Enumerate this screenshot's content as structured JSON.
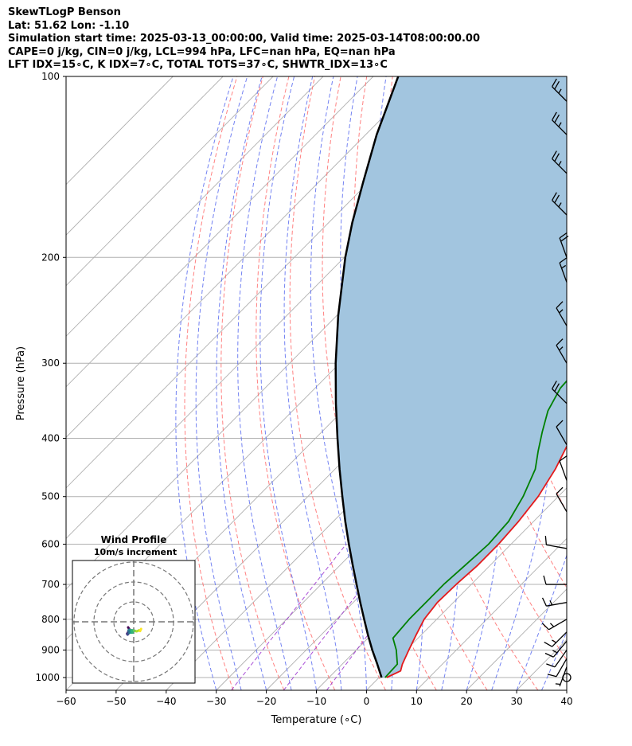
{
  "header": {
    "line1": "SkewTLogP Benson",
    "line2": "Lat: 51.62   Lon: -1.10",
    "line3": "Simulation start time: 2025-03-13_00:00:00, Valid time: 2025-03-14T08:00:00.00",
    "line4": "CAPE=0 j/kg, CIN=0 j/kg, LCL=994 hPa, LFC=nan hPa, EQ=nan hPa",
    "line5": "LFT IDX=15∘C, K IDX=7∘C, TOTAL TOTS=37∘C, SHWTR_IDX=13∘C"
  },
  "colors": {
    "temperature": "#e41a1c",
    "dewpoint": "#008000",
    "parcel": "#000000",
    "cape_fill": "#a2c5df",
    "dry_adiabat": "#ff6b6b",
    "moist_adiabat": "#5a6cf0",
    "isotherm": "#b0b0b0",
    "mixing_ratio": "#9b30d0"
  },
  "chart_data": {
    "type": "line",
    "xlabel": "Temperature (∘C)",
    "ylabel": "Pressure (hPa)",
    "xlim": [
      -60,
      40
    ],
    "ylim": [
      1050,
      100
    ],
    "y_scale": "log",
    "x_ticks": [
      "−60",
      "−50",
      "−40",
      "−30",
      "−20",
      "−10",
      "0",
      "10",
      "20",
      "30",
      "40"
    ],
    "y_ticks": [
      "1000",
      "900",
      "800",
      "700",
      "600",
      "500",
      "400",
      "300",
      "200",
      "100"
    ],
    "grid": true,
    "series": [
      {
        "key": "temperature",
        "points": [
          [
            1000,
            1.5
          ],
          [
            975,
            3.0
          ],
          [
            950,
            2.0
          ],
          [
            900,
            0.5
          ],
          [
            850,
            -1.0
          ],
          [
            800,
            -2.5
          ],
          [
            750,
            -3.2
          ],
          [
            700,
            -3.0
          ],
          [
            650,
            -2.5
          ],
          [
            600,
            -2.5
          ],
          [
            550,
            -3.0
          ],
          [
            500,
            -4.0
          ],
          [
            450,
            -6.0
          ],
          [
            400,
            -9.0
          ],
          [
            350,
            -13.0
          ],
          [
            300,
            -16.5
          ],
          [
            280,
            -16.0
          ],
          [
            250,
            -13.0
          ],
          [
            200,
            -6.0
          ],
          [
            180,
            0.0
          ],
          [
            165,
            2.5
          ],
          [
            140,
            5.0
          ],
          [
            120,
            7.5
          ],
          [
            100,
            9.0
          ]
        ]
      },
      {
        "key": "dewpoint",
        "points": [
          [
            1000,
            1.2
          ],
          [
            950,
            1.0
          ],
          [
            900,
            -2.0
          ],
          [
            860,
            -5.0
          ],
          [
            800,
            -5.5
          ],
          [
            750,
            -5.5
          ],
          [
            700,
            -5.5
          ],
          [
            650,
            -5.0
          ],
          [
            600,
            -4.5
          ],
          [
            550,
            -5.0
          ],
          [
            500,
            -7.0
          ],
          [
            450,
            -10.0
          ],
          [
            420,
            -13.0
          ],
          [
            390,
            -16.0
          ],
          [
            360,
            -19.0
          ],
          [
            330,
            -21.0
          ],
          [
            300,
            -21.5
          ],
          [
            270,
            -22.0
          ],
          [
            240,
            -21.5
          ],
          [
            210,
            -21.0
          ],
          [
            190,
            -23.0
          ],
          [
            175,
            -24.0
          ],
          [
            150,
            -21.0
          ],
          [
            120,
            -15.0
          ],
          [
            100,
            -9.5
          ]
        ]
      },
      {
        "key": "parcel",
        "points": [
          [
            1000,
            0.5
          ],
          [
            950,
            -3.0
          ],
          [
            900,
            -6.8
          ],
          [
            850,
            -10.6
          ],
          [
            800,
            -14.5
          ],
          [
            750,
            -18.6
          ],
          [
            700,
            -22.9
          ],
          [
            650,
            -27.5
          ],
          [
            600,
            -32.4
          ],
          [
            550,
            -37.6
          ],
          [
            500,
            -43.1
          ],
          [
            450,
            -49.1
          ],
          [
            400,
            -55.6
          ],
          [
            350,
            -62.8
          ],
          [
            300,
            -70.8
          ],
          [
            250,
            -79.7
          ],
          [
            200,
            -89.8
          ],
          [
            175,
            -95.3
          ],
          [
            150,
            -101.1
          ],
          [
            125,
            -107.8
          ],
          [
            100,
            -115.0
          ]
        ]
      }
    ],
    "wind_barbs": [
      {
        "p": 1000,
        "speed": 0,
        "dir": 0
      },
      {
        "p": 960,
        "speed": 5,
        "dir": 200
      },
      {
        "p": 930,
        "speed": 10,
        "dir": 210
      },
      {
        "p": 900,
        "speed": 10,
        "dir": 215
      },
      {
        "p": 870,
        "speed": 15,
        "dir": 220
      },
      {
        "p": 840,
        "speed": 15,
        "dir": 225
      },
      {
        "p": 800,
        "speed": 15,
        "dir": 240
      },
      {
        "p": 750,
        "speed": 15,
        "dir": 260
      },
      {
        "p": 700,
        "speed": 10,
        "dir": 270
      },
      {
        "p": 610,
        "speed": 10,
        "dir": 280
      },
      {
        "p": 530,
        "speed": 10,
        "dir": 330
      },
      {
        "p": 470,
        "speed": 10,
        "dir": 340
      },
      {
        "p": 410,
        "speed": 10,
        "dir": 330
      },
      {
        "p": 350,
        "speed": 20,
        "dir": 315
      },
      {
        "p": 300,
        "speed": 15,
        "dir": 330
      },
      {
        "p": 260,
        "speed": 15,
        "dir": 330
      },
      {
        "p": 220,
        "speed": 15,
        "dir": 340
      },
      {
        "p": 200,
        "speed": 20,
        "dir": 340
      },
      {
        "p": 170,
        "speed": 25,
        "dir": 315
      },
      {
        "p": 145,
        "speed": 25,
        "dir": 315
      },
      {
        "p": 125,
        "speed": 25,
        "dir": 315
      },
      {
        "p": 110,
        "speed": 25,
        "dir": 315
      }
    ],
    "inset": {
      "title_line1": "Wind Profile",
      "title_line2": "10m/s increment",
      "hodograph": [
        [
          0,
          0
        ],
        [
          0.5,
          0.8
        ],
        [
          0.2,
          2.0
        ],
        [
          -0.5,
          3.2
        ],
        [
          -0.3,
          3.6
        ],
        [
          0.4,
          2.8
        ],
        [
          0.2,
          1.6
        ],
        [
          0.6,
          1.2
        ],
        [
          1.6,
          1.9
        ],
        [
          1.3,
          2.6
        ],
        [
          2.2,
          2.6
        ],
        [
          1.7,
          1.4
        ],
        [
          3.0,
          1.6
        ],
        [
          4.2,
          2.0
        ],
        [
          5.5,
          1.5
        ],
        [
          6.0,
          1.8
        ],
        [
          6.5,
          0.8
        ]
      ]
    }
  }
}
